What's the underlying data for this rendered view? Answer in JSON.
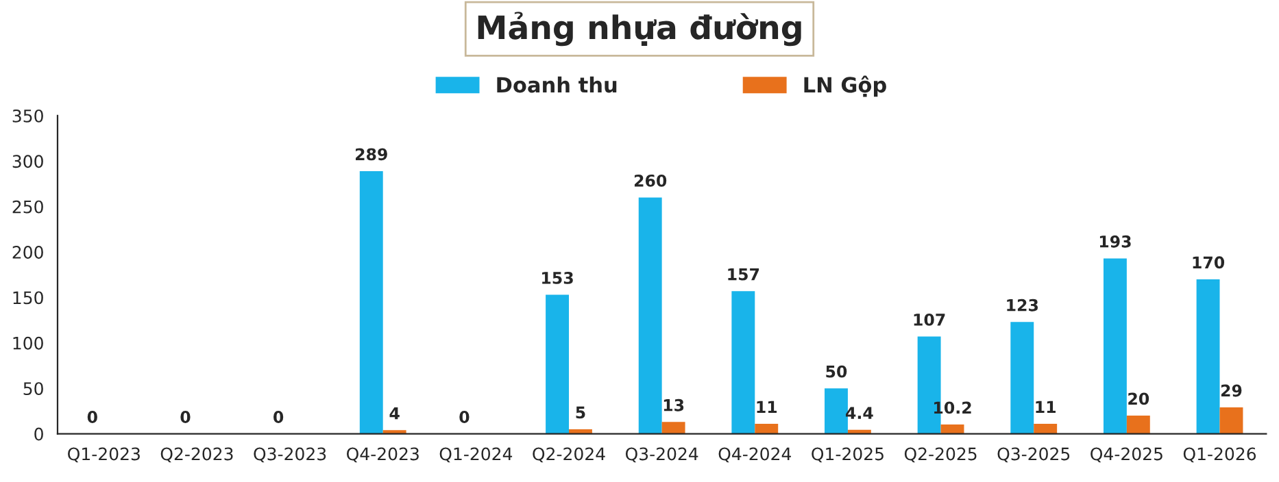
{
  "chart_data": {
    "type": "bar",
    "title": "Mảng nhựa đường",
    "categories": [
      "Q1-2023",
      "Q2-2023",
      "Q3-2023",
      "Q4-2023",
      "Q1-2024",
      "Q2-2024",
      "Q3-2024",
      "Q4-2024",
      "Q1-2025",
      "Q2-2025",
      "Q3-2025",
      "Q4-2025",
      "Q1-2026"
    ],
    "series": [
      {
        "name": "Doanh thu",
        "color": "#19b4ea",
        "values": [
          0,
          0,
          0,
          289,
          0,
          153,
          260,
          157,
          50,
          107,
          123,
          193,
          170
        ],
        "value_labels": [
          "0",
          "0",
          "0",
          "289",
          "0",
          "153",
          "260",
          "157",
          "50",
          "107",
          "123",
          "193",
          "170"
        ]
      },
      {
        "name": "LN Gộp",
        "color": "#e8711c",
        "values": [
          0,
          0,
          0,
          4,
          0,
          5,
          13,
          11,
          4.4,
          10.2,
          11,
          20,
          29
        ],
        "value_labels": [
          null,
          null,
          null,
          "4",
          null,
          "5",
          "13",
          "11",
          "4.4",
          "10.2",
          "11",
          "20",
          "29"
        ]
      }
    ],
    "ylim": [
      0,
      350
    ],
    "yticks": [
      0,
      50,
      100,
      150,
      200,
      250,
      300,
      350
    ],
    "grid": false,
    "legend": "top"
  }
}
